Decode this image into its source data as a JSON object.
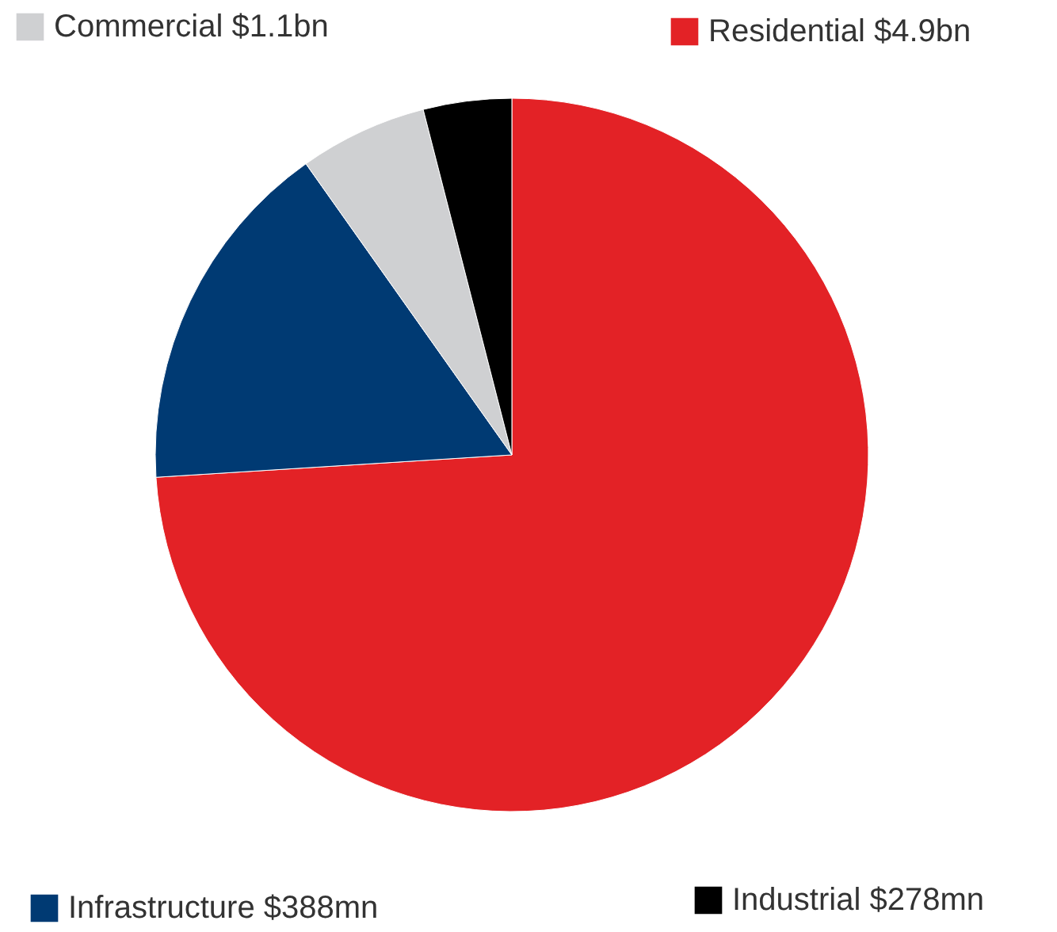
{
  "chart_data": {
    "type": "pie",
    "categories": [
      "Residential $4.9bn",
      "Infrastructure $388mn",
      "Commercial $1.1bn",
      "Industrial $278mn"
    ],
    "values": [
      74.0,
      16.2,
      5.8,
      4.0
    ],
    "colors": [
      "#e32226",
      "#003a73",
      "#cfd0d2",
      "#000000"
    ],
    "legend": "bottom left"
  }
}
